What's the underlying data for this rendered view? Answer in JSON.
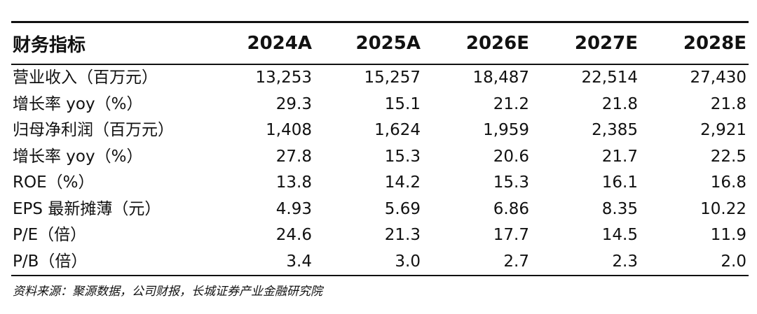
{
  "table": {
    "headers": [
      "财务指标",
      "2024A",
      "2025A",
      "2026E",
      "2027E",
      "2028E"
    ],
    "rows": [
      [
        "营业收入（百万元）",
        "13,253",
        "15,257",
        "18,487",
        "22,514",
        "27,430"
      ],
      [
        "增长率 yoy（%）",
        "29.3",
        "15.1",
        "21.2",
        "21.8",
        "21.8"
      ],
      [
        "归母净利润（百万元）",
        "1,408",
        "1,624",
        "1,959",
        "2,385",
        "2,921"
      ],
      [
        "增长率 yoy（%）",
        "27.8",
        "15.3",
        "20.6",
        "21.7",
        "22.5"
      ],
      [
        "ROE（%）",
        "13.8",
        "14.2",
        "15.3",
        "16.1",
        "16.8"
      ],
      [
        "EPS 最新摊薄（元）",
        "4.93",
        "5.69",
        "6.86",
        "8.35",
        "10.22"
      ],
      [
        "P/E（倍）",
        "24.6",
        "21.3",
        "17.7",
        "14.5",
        "11.9"
      ],
      [
        "P/B（倍）",
        "3.4",
        "3.0",
        "2.7",
        "2.3",
        "2.0"
      ]
    ]
  },
  "source": "资料来源：聚源数据，公司财报，长城证券产业金融研究院"
}
